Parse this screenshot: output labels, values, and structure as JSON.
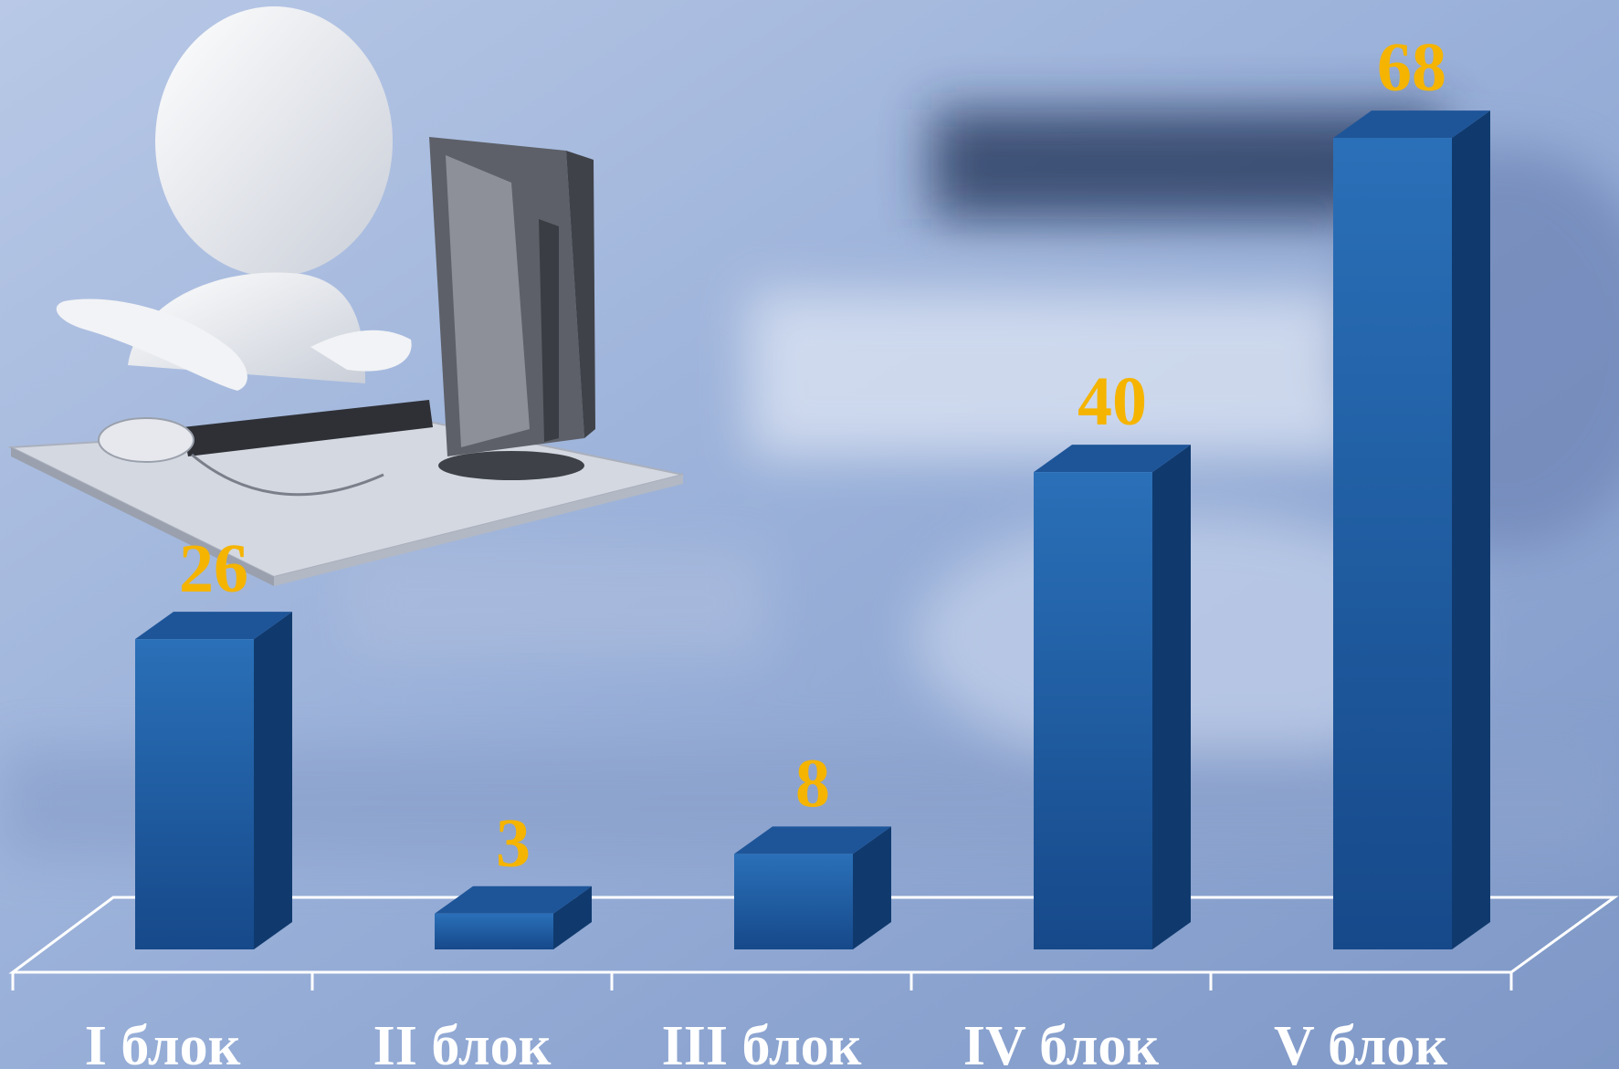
{
  "colors": {
    "bar_front_top": "#2a70b8",
    "bar_front_bottom": "#16498a",
    "bar_side": "#103a6e",
    "bar_top": "#1e5599",
    "value_label": "#f5b400",
    "category_label": "#ffffff",
    "floor_line": "#ffffff",
    "background": "#9fb3d6"
  },
  "chart_data": {
    "type": "bar",
    "categories": [
      "I блок",
      "II блок",
      "III блок",
      "IV блок",
      "V блок"
    ],
    "values": [
      26,
      3,
      8,
      40,
      68
    ],
    "data_labels": [
      "26",
      "3",
      "8",
      "40",
      "68"
    ],
    "ylim": [
      0,
      70
    ],
    "grid": false,
    "legend": "none",
    "style": "3d-columns"
  },
  "illustration": {
    "icon": "person-at-computer-icon"
  }
}
